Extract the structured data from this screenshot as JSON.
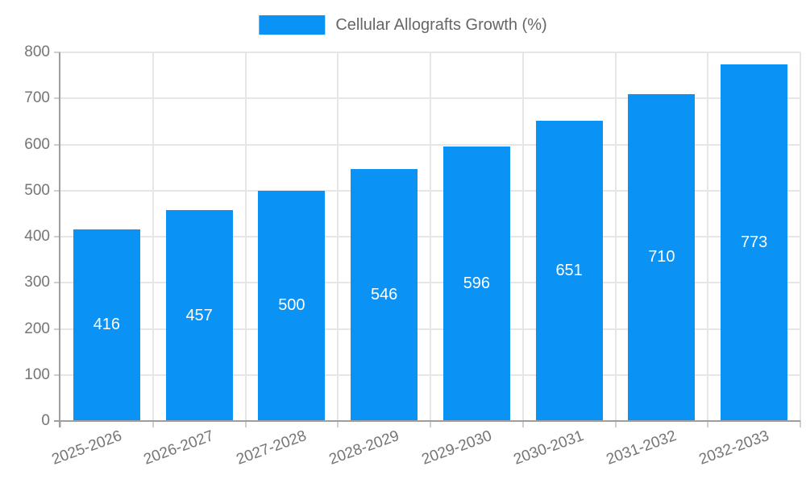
{
  "chart_data": {
    "type": "bar",
    "title": "Cellular Allografts Growth (%)",
    "categories": [
      "2025-2026",
      "2026-2027",
      "2027-2028",
      "2028-2029",
      "2029-2030",
      "2030-2031",
      "2031-2032",
      "2032-2033"
    ],
    "series": [
      {
        "name": "Cellular Allografts Growth (%)",
        "values": [
          416,
          457,
          500,
          546,
          596,
          651,
          710,
          773
        ]
      }
    ],
    "xlabel": "",
    "ylabel": "",
    "ylim": [
      0,
      800
    ],
    "y_ticks": [
      0,
      100,
      200,
      300,
      400,
      500,
      600,
      700,
      800
    ],
    "grid": true,
    "legend_position": "top-center",
    "value_labels": "inside-center",
    "x_label_rotation_deg": -20,
    "colors": {
      "bar": "#0a92f5",
      "value_label": "#ffffff",
      "grid": "#e6e6e6",
      "axis": "#9e9e9e",
      "tick_mark": "#cfcfcf",
      "tick_text": "#757575",
      "legend_text": "#666666",
      "background": "#ffffff"
    }
  }
}
